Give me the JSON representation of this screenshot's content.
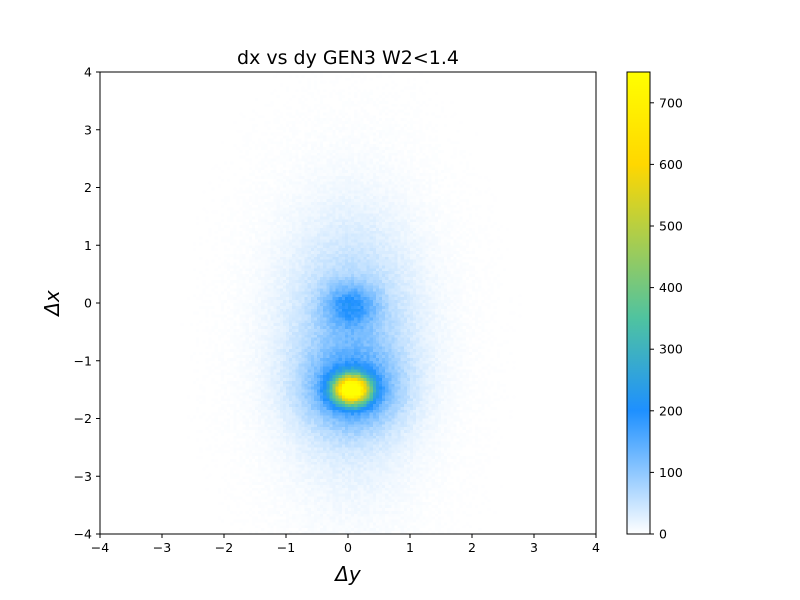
{
  "chart_data": {
    "type": "heatmap",
    "title": "dx vs dy GEN3 W2<1.4",
    "xlabel": "Δy",
    "ylabel": "Δx",
    "xlim": [
      -4,
      4
    ],
    "ylim": [
      -4,
      4
    ],
    "x_ticks": [
      -4,
      -3,
      -2,
      -1,
      0,
      1,
      2,
      3,
      4
    ],
    "y_ticks": [
      -4,
      -3,
      -2,
      -1,
      0,
      1,
      2,
      3,
      4
    ],
    "x_tick_labels": [
      "−4",
      "−3",
      "−2",
      "−1",
      "0",
      "1",
      "2",
      "3",
      "4"
    ],
    "y_tick_labels": [
      "−4",
      "−3",
      "−2",
      "−1",
      "0",
      "1",
      "2",
      "3",
      "4"
    ],
    "colorbar": {
      "min": 0,
      "max": 750,
      "ticks": [
        0,
        100,
        200,
        300,
        400,
        500,
        600,
        700
      ],
      "tick_labels": [
        "0",
        "100",
        "200",
        "300",
        "400",
        "500",
        "600",
        "700"
      ],
      "colors": [
        "#ffffff",
        "#1e90ff",
        "#4fc3a0",
        "#ffd700",
        "#ffff00"
      ],
      "stops": [
        0,
        200,
        350,
        600,
        750
      ]
    },
    "bins": 160,
    "components": [
      {
        "center_dy": 0.06,
        "center_dx": -1.5,
        "sigma_dy": 0.2,
        "sigma_dx": 0.17,
        "peak": 720
      },
      {
        "center_dy": 0.06,
        "center_dx": -1.5,
        "sigma_dy": 0.5,
        "sigma_dx": 0.45,
        "peak": 130
      },
      {
        "center_dy": 0.04,
        "center_dx": -0.05,
        "sigma_dy": 0.28,
        "sigma_dx": 0.25,
        "peak": 120
      },
      {
        "center_dy": 0.05,
        "center_dx": -0.7,
        "sigma_dy": 0.65,
        "sigma_dx": 1.2,
        "peak": 75
      },
      {
        "center_dy": 0.05,
        "center_dx": -0.7,
        "sigma_dy": 0.85,
        "sigma_dx": 1.7,
        "peak": 22
      }
    ],
    "grid": false
  }
}
